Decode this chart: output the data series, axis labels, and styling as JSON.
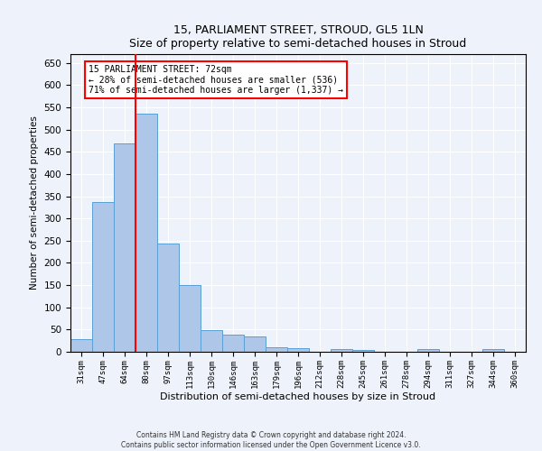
{
  "title": "15, PARLIAMENT STREET, STROUD, GL5 1LN",
  "subtitle": "Size of property relative to semi-detached houses in Stroud",
  "xlabel": "Distribution of semi-detached houses by size in Stroud",
  "ylabel": "Number of semi-detached properties",
  "categories": [
    "31sqm",
    "47sqm",
    "64sqm",
    "80sqm",
    "97sqm",
    "113sqm",
    "130sqm",
    "146sqm",
    "163sqm",
    "179sqm",
    "196sqm",
    "212sqm",
    "228sqm",
    "245sqm",
    "261sqm",
    "278sqm",
    "294sqm",
    "311sqm",
    "327sqm",
    "344sqm",
    "360sqm"
  ],
  "values": [
    29,
    338,
    468,
    535,
    243,
    150,
    49,
    38,
    35,
    10,
    8,
    0,
    6,
    5,
    0,
    0,
    7,
    0,
    0,
    7,
    0
  ],
  "bar_color": "#aec6e8",
  "bar_edge_color": "#5a9fd4",
  "ylim": [
    0,
    670
  ],
  "yticks": [
    0,
    50,
    100,
    150,
    200,
    250,
    300,
    350,
    400,
    450,
    500,
    550,
    600,
    650
  ],
  "annotation_title": "15 PARLIAMENT STREET: 72sqm",
  "annotation_line1": "← 28% of semi-detached houses are smaller (536)",
  "annotation_line2": "71% of semi-detached houses are larger (1,337) →",
  "vline_x": 2.5,
  "footer1": "Contains HM Land Registry data © Crown copyright and database right 2024.",
  "footer2": "Contains public sector information licensed under the Open Government Licence v3.0.",
  "background_color": "#eef2fa",
  "plot_bg_color": "#eef2fa"
}
